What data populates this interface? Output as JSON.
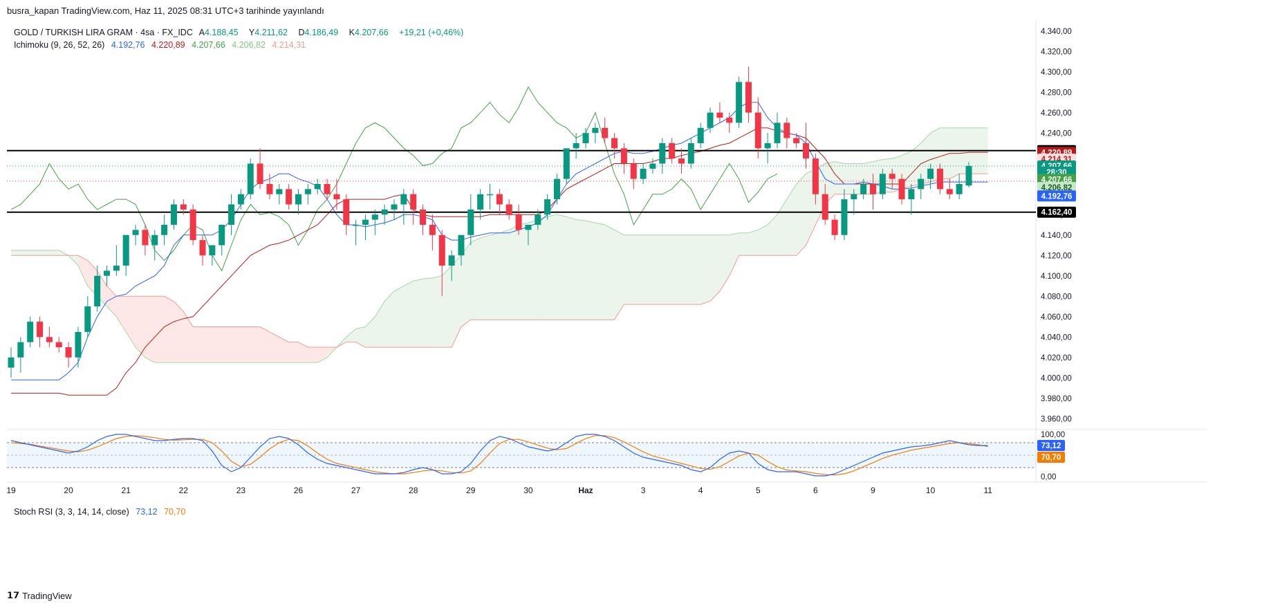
{
  "header": {
    "published": "busra_kapan TradingView.com, Haz 11, 2025 08:31 UTC+3 tarihinde yayınlandı"
  },
  "legend": {
    "symbol": "GOLD / TURKISH LIRA GRAM · 4sa · FX_IDC",
    "open_label": "A",
    "open": "4.188,45",
    "high_label": "Y",
    "high": "4.211,62",
    "low_label": "D",
    "low": "4.186,49",
    "close_label": "K",
    "close": "4.207,66",
    "change": "+19,21 (+0,46%)",
    "ichimoku_label": "Ichimoku (9, 26, 52, 26)",
    "ichimoku_values": [
      "4.192,76",
      "4.220,89",
      "4.207,66",
      "4.206,82",
      "4.214,31"
    ],
    "stoch_label": "Stoch RSI (3, 3, 14, 14, close)",
    "stoch_values": [
      "73,12",
      "70,70"
    ]
  },
  "colors": {
    "up": "#089981",
    "down": "#f23645",
    "tenkan": "#2962ff",
    "kijun": "#b71c1c",
    "chikou": "#43a047",
    "spanA": "#a5d6a7",
    "spanB": "#ef9a9a",
    "stochK": "#2962ff",
    "stochD": "#f57c00"
  },
  "chart_data": {
    "type": "candlestick",
    "symbol": "GOLD / TURKISH LIRA GRAM",
    "interval": "4sa",
    "ylim": [
      3950,
      4350
    ],
    "y_ticks": [
      "4.340,00",
      "4.320,00",
      "4.300,00",
      "4.280,00",
      "4.260,00",
      "4.240,00",
      "4.220,00",
      "4.200,00",
      "4.180,00",
      "4.160,00",
      "4.140,00",
      "4.120,00",
      "4.100,00",
      "4.080,00",
      "4.060,00",
      "4.040,00",
      "4.020,00",
      "4.000,00",
      "3.980,00",
      "3.960,00"
    ],
    "x_labels": [
      "19",
      "20",
      "21",
      "22",
      "23",
      "26",
      "27",
      "28",
      "29",
      "30",
      "Haz",
      "3",
      "4",
      "5",
      "6",
      "9",
      "10",
      "11"
    ],
    "x_label_bars": [
      0,
      6,
      12,
      18,
      24,
      30,
      36,
      42,
      48,
      54,
      60,
      66,
      72,
      78,
      84,
      90,
      96,
      102
    ],
    "candles": [
      [
        4010,
        4030,
        4000,
        4020
      ],
      [
        4020,
        4040,
        4005,
        4035
      ],
      [
        4035,
        4060,
        4030,
        4055
      ],
      [
        4055,
        4060,
        4030,
        4040
      ],
      [
        4040,
        4050,
        4030,
        4035
      ],
      [
        4035,
        4040,
        4025,
        4030
      ],
      [
        4030,
        4035,
        4010,
        4020
      ],
      [
        4020,
        4050,
        4010,
        4045
      ],
      [
        4045,
        4080,
        4040,
        4070
      ],
      [
        4070,
        4110,
        4065,
        4100
      ],
      [
        4100,
        4110,
        4090,
        4105
      ],
      [
        4105,
        4130,
        4100,
        4110
      ],
      [
        4110,
        4140,
        4100,
        4140
      ],
      [
        4140,
        4150,
        4130,
        4145
      ],
      [
        4145,
        4150,
        4120,
        4130
      ],
      [
        4130,
        4145,
        4115,
        4140
      ],
      [
        4140,
        4160,
        4130,
        4150
      ],
      [
        4150,
        4175,
        4145,
        4170
      ],
      [
        4170,
        4175,
        4160,
        4165
      ],
      [
        4165,
        4170,
        4130,
        4135
      ],
      [
        4135,
        4140,
        4110,
        4120
      ],
      [
        4120,
        4130,
        4110,
        4130
      ],
      [
        4130,
        4150,
        4120,
        4150
      ],
      [
        4150,
        4180,
        4140,
        4170
      ],
      [
        4170,
        4185,
        4165,
        4180
      ],
      [
        4180,
        4215,
        4175,
        4210
      ],
      [
        4210,
        4225,
        4185,
        4190
      ],
      [
        4190,
        4200,
        4175,
        4180
      ],
      [
        4180,
        4190,
        4170,
        4185
      ],
      [
        4185,
        4190,
        4165,
        4170
      ],
      [
        4170,
        4185,
        4160,
        4180
      ],
      [
        4180,
        4190,
        4170,
        4185
      ],
      [
        4185,
        4195,
        4180,
        4190
      ],
      [
        4190,
        4195,
        4175,
        4180
      ],
      [
        4180,
        4195,
        4165,
        4175
      ],
      [
        4175,
        4180,
        4140,
        4150
      ],
      [
        4150,
        4155,
        4130,
        4150
      ],
      [
        4150,
        4160,
        4135,
        4155
      ],
      [
        4155,
        4165,
        4140,
        4160
      ],
      [
        4160,
        4170,
        4150,
        4165
      ],
      [
        4165,
        4175,
        4155,
        4170
      ],
      [
        4170,
        4185,
        4150,
        4180
      ],
      [
        4180,
        4185,
        4150,
        4165
      ],
      [
        4165,
        4170,
        4140,
        4150
      ],
      [
        4150,
        4160,
        4125,
        4140
      ],
      [
        4140,
        4145,
        4080,
        4110
      ],
      [
        4110,
        4125,
        4095,
        4120
      ],
      [
        4120,
        4140,
        4110,
        4140
      ],
      [
        4140,
        4180,
        4130,
        4165
      ],
      [
        4165,
        4185,
        4155,
        4180
      ],
      [
        4180,
        4190,
        4165,
        4180
      ],
      [
        4180,
        4185,
        4160,
        4170
      ],
      [
        4170,
        4175,
        4155,
        4160
      ],
      [
        4160,
        4170,
        4140,
        4145
      ],
      [
        4145,
        4150,
        4130,
        4150
      ],
      [
        4150,
        4165,
        4145,
        4160
      ],
      [
        4160,
        4180,
        4155,
        4175
      ],
      [
        4175,
        4200,
        4170,
        4195
      ],
      [
        4195,
        4225,
        4190,
        4225
      ],
      [
        4225,
        4240,
        4215,
        4230
      ],
      [
        4230,
        4245,
        4225,
        4240
      ],
      [
        4240,
        4250,
        4230,
        4245
      ],
      [
        4245,
        4255,
        4230,
        4235
      ],
      [
        4235,
        4240,
        4215,
        4225
      ],
      [
        4225,
        4230,
        4200,
        4210
      ],
      [
        4210,
        4215,
        4185,
        4195
      ],
      [
        4195,
        4210,
        4190,
        4205
      ],
      [
        4205,
        4215,
        4200,
        4210
      ],
      [
        4210,
        4235,
        4200,
        4230
      ],
      [
        4230,
        4235,
        4210,
        4215
      ],
      [
        4215,
        4225,
        4200,
        4210
      ],
      [
        4210,
        4235,
        4205,
        4230
      ],
      [
        4230,
        4250,
        4225,
        4245
      ],
      [
        4245,
        4265,
        4240,
        4260
      ],
      [
        4260,
        4270,
        4250,
        4255
      ],
      [
        4255,
        4260,
        4240,
        4250
      ],
      [
        4250,
        4295,
        4245,
        4290
      ],
      [
        4290,
        4305,
        4250,
        4260
      ],
      [
        4260,
        4275,
        4215,
        4225
      ],
      [
        4225,
        4240,
        4210,
        4230
      ],
      [
        4230,
        4260,
        4225,
        4250
      ],
      [
        4250,
        4255,
        4225,
        4235
      ],
      [
        4235,
        4240,
        4225,
        4230
      ],
      [
        4230,
        4250,
        4205,
        4215
      ],
      [
        4215,
        4220,
        4170,
        4180
      ],
      [
        4180,
        4190,
        4150,
        4155
      ],
      [
        4155,
        4160,
        4135,
        4140
      ],
      [
        4140,
        4185,
        4135,
        4175
      ],
      [
        4175,
        4185,
        4160,
        4180
      ],
      [
        4180,
        4195,
        4175,
        4190
      ],
      [
        4190,
        4200,
        4165,
        4180
      ],
      [
        4180,
        4205,
        4175,
        4200
      ],
      [
        4200,
        4205,
        4185,
        4195
      ],
      [
        4195,
        4200,
        4170,
        4175
      ],
      [
        4175,
        4190,
        4160,
        4185
      ],
      [
        4185,
        4200,
        4175,
        4195
      ],
      [
        4195,
        4210,
        4185,
        4205
      ],
      [
        4205,
        4210,
        4180,
        4185
      ],
      [
        4185,
        4195,
        4175,
        4180
      ],
      [
        4180,
        4200,
        4175,
        4190
      ],
      [
        4188.45,
        4211.62,
        4186.49,
        4207.66
      ]
    ],
    "ichimoku": {
      "tenkan": [
        3998,
        3998,
        3998,
        3998,
        3998,
        3998,
        4005,
        4015,
        4040,
        4060,
        4075,
        4080,
        4082,
        4090,
        4095,
        4100,
        4110,
        4130,
        4140,
        4140,
        4140,
        4140,
        4145,
        4155,
        4170,
        4185,
        4192,
        4195,
        4200,
        4200,
        4195,
        4192,
        4188,
        4175,
        4160,
        4150,
        4150,
        4148,
        4150,
        4152,
        4155,
        4160,
        4160,
        4158,
        4155,
        4140,
        4135,
        4135,
        4138,
        4140,
        4142,
        4142,
        4142,
        4145,
        4148,
        4152,
        4160,
        4175,
        4190,
        4200,
        4205,
        4210,
        4215,
        4220,
        4222,
        4220,
        4220,
        4222,
        4225,
        4228,
        4230,
        4235,
        4240,
        4245,
        4250,
        4255,
        4265,
        4270,
        4270,
        4255,
        4245,
        4240,
        4238,
        4230,
        4212,
        4195,
        4190,
        4190,
        4190,
        4192,
        4190,
        4188,
        4185,
        4185,
        4186,
        4188,
        4190,
        4192,
        4192,
        4192,
        4192,
        4192,
        4192
      ],
      "kijun": [
        3985,
        3985,
        3985,
        3985,
        3985,
        3985,
        3983,
        3983,
        3983,
        3983,
        3983,
        3990,
        4005,
        4015,
        4030,
        4040,
        4050,
        4055,
        4058,
        4060,
        4070,
        4080,
        4090,
        4100,
        4110,
        4120,
        4125,
        4130,
        4132,
        4135,
        4140,
        4145,
        4150,
        4160,
        4170,
        4175,
        4175,
        4175,
        4175,
        4175,
        4178,
        4180,
        4165,
        4160,
        4158,
        4158,
        4158,
        4158,
        4158,
        4158,
        4160,
        4160,
        4160,
        4160,
        4160,
        4160,
        4165,
        4175,
        4185,
        4190,
        4195,
        4200,
        4205,
        4210,
        4210,
        4210,
        4210,
        4212,
        4215,
        4215,
        4218,
        4220,
        4222,
        4225,
        4228,
        4230,
        4235,
        4240,
        4245,
        4245,
        4242,
        4240,
        4238,
        4235,
        4225,
        4215,
        4200,
        4190,
        4190,
        4190,
        4190,
        4190,
        4190,
        4190,
        4200,
        4210,
        4214,
        4217,
        4220,
        4220,
        4221,
        4221,
        4221
      ],
      "spanA": [
        4125,
        4125,
        4125,
        4125,
        4125,
        4125,
        4120,
        4110,
        4090,
        4080,
        4070,
        4060,
        4045,
        4030,
        4020,
        4015,
        4015,
        4015,
        4015,
        4015,
        4015,
        4015,
        4015,
        4015,
        4015,
        4015,
        4015,
        4015,
        4015,
        4015,
        4015,
        4015,
        4015,
        4020,
        4030,
        4040,
        4048,
        4050,
        4060,
        4075,
        4085,
        4090,
        4095,
        4097,
        4098,
        4100,
        4110,
        4120,
        4133,
        4137,
        4140,
        4142,
        4145,
        4150,
        4152,
        4155,
        4158,
        4160,
        4158,
        4155,
        4154,
        4152,
        4150,
        4145,
        4140,
        4140,
        4140,
        4140,
        4140,
        4140,
        4140,
        4140,
        4140,
        4140,
        4140,
        4140,
        4142,
        4142,
        4145,
        4150,
        4160,
        4175,
        4190,
        4200,
        4205,
        4210,
        4212,
        4210,
        4210,
        4210,
        4212,
        4214,
        4215,
        4218,
        4222,
        4230,
        4240,
        4245,
        4245,
        4245,
        4245,
        4245,
        4245
      ],
      "spanB": [
        4120,
        4120,
        4120,
        4120,
        4120,
        4120,
        4120,
        4120,
        4115,
        4105,
        4090,
        4080,
        4080,
        4080,
        4080,
        4080,
        4080,
        4075,
        4065,
        4050,
        4050,
        4050,
        4050,
        4050,
        4050,
        4050,
        4050,
        4045,
        4040,
        4035,
        4035,
        4030,
        4030,
        4030,
        4030,
        4035,
        4035,
        4030,
        4030,
        4030,
        4030,
        4030,
        4030,
        4030,
        4030,
        4030,
        4030,
        4050,
        4057,
        4057,
        4057,
        4057,
        4057,
        4057,
        4057,
        4057,
        4057,
        4057,
        4057,
        4057,
        4057,
        4057,
        4057,
        4057,
        4072,
        4072,
        4072,
        4072,
        4072,
        4072,
        4072,
        4072,
        4072,
        4075,
        4085,
        4100,
        4120,
        4120,
        4120,
        4120,
        4120,
        4120,
        4120,
        4130,
        4150,
        4170,
        4180,
        4180,
        4180,
        4180,
        4180,
        4182,
        4182,
        4185,
        4188,
        4190,
        4192,
        4195,
        4195,
        4200,
        4200,
        4200,
        4200
      ],
      "chikou": [
        4165,
        4170,
        4180,
        4190,
        4210,
        4195,
        4185,
        4190,
        4175,
        4165,
        4170,
        4175,
        4175,
        4170,
        4150,
        4125,
        4115,
        4125,
        4140,
        4150,
        4145,
        4120,
        4105,
        4130,
        4155,
        4170,
        4160,
        4162,
        4158,
        4150,
        4130,
        4145,
        4165,
        4175,
        4190,
        4210,
        4230,
        4245,
        4250,
        4245,
        4235,
        4225,
        4218,
        4208,
        4210,
        4220,
        4225,
        4245,
        4250,
        4260,
        4270,
        4258,
        4250,
        4265,
        4285,
        4270,
        4260,
        4250,
        4245,
        4235,
        4240,
        4260,
        4230,
        4200,
        4180,
        4150,
        4165,
        4180,
        4180,
        4185,
        4195,
        4185,
        4165,
        4180,
        4195,
        4210,
        4195,
        4172,
        4182,
        4195,
        4200
      ]
    },
    "stoch_rsi": {
      "ylim": [
        0,
        100
      ],
      "ticks": [
        "100,00",
        "0,00"
      ],
      "band": [
        20,
        80
      ],
      "k": [
        85,
        80,
        75,
        70,
        65,
        60,
        55,
        60,
        70,
        85,
        95,
        100,
        100,
        95,
        90,
        85,
        85,
        88,
        90,
        90,
        85,
        60,
        25,
        10,
        20,
        45,
        70,
        90,
        95,
        90,
        75,
        55,
        40,
        30,
        25,
        20,
        15,
        10,
        5,
        5,
        5,
        8,
        15,
        20,
        15,
        5,
        5,
        10,
        30,
        60,
        85,
        95,
        90,
        80,
        70,
        65,
        60,
        65,
        80,
        95,
        100,
        100,
        95,
        85,
        70,
        55,
        45,
        40,
        35,
        30,
        25,
        15,
        10,
        20,
        40,
        55,
        60,
        55,
        30,
        15,
        10,
        10,
        10,
        5,
        0,
        0,
        5,
        15,
        25,
        35,
        45,
        55,
        60,
        65,
        70,
        72,
        75,
        80,
        85,
        80,
        75,
        73.12,
        73.12
      ],
      "d": [
        80,
        78,
        76,
        72,
        68,
        64,
        60,
        58,
        62,
        70,
        80,
        90,
        95,
        97,
        95,
        92,
        88,
        86,
        87,
        88,
        88,
        80,
        60,
        35,
        22,
        28,
        45,
        65,
        80,
        88,
        85,
        72,
        55,
        40,
        30,
        25,
        20,
        15,
        10,
        7,
        5,
        5,
        8,
        12,
        14,
        12,
        8,
        7,
        12,
        30,
        55,
        78,
        88,
        88,
        82,
        74,
        67,
        63,
        66,
        78,
        90,
        97,
        97,
        92,
        82,
        70,
        58,
        48,
        42,
        36,
        30,
        24,
        18,
        16,
        22,
        35,
        48,
        55,
        50,
        35,
        22,
        14,
        12,
        10,
        6,
        3,
        2,
        5,
        12,
        22,
        32,
        42,
        50,
        56,
        62,
        66,
        70,
        74,
        78,
        80,
        78,
        75,
        70.7
      ]
    },
    "price_labels": {
      "black": "4.222,73",
      "kijun": "4.220,89",
      "spanB": "4.214,31",
      "close": "4.207,66",
      "countdown": "28:30",
      "chikou": "4.207,66",
      "spanA": "4.206,82",
      "tenkan": "4.192,76",
      "hline": "4.162,40"
    },
    "horizontal_lines": [
      4222.73,
      4162.4
    ]
  },
  "footer": {
    "brand": "TradingView"
  }
}
